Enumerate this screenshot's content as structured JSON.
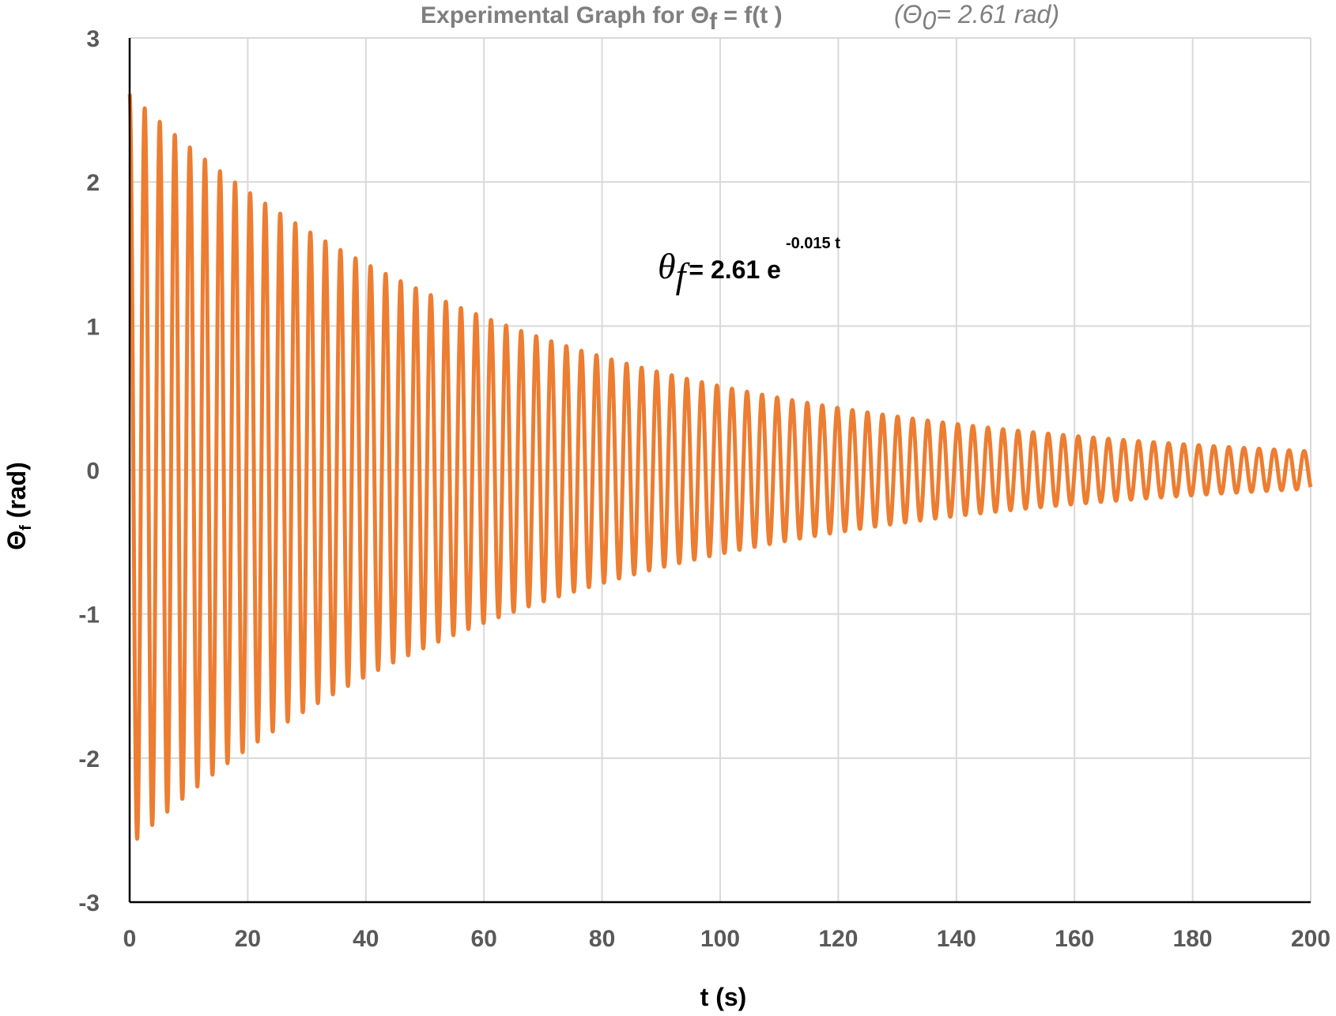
{
  "chart_data": {
    "type": "line",
    "title": {
      "prefix": "Experimental Graph for Θ",
      "subscript": "f",
      "suffix": " = f(t )",
      "note_open": "(Θ",
      "note_sub": "0",
      "note_rest": "= 2.61 rad)"
    },
    "xlabel": "t (s)",
    "ylabel": {
      "symbol": "Θ",
      "subscript": "f",
      "unit": " (rad)"
    },
    "xlim": [
      0,
      200
    ],
    "ylim": [
      -3,
      3
    ],
    "x_ticks": [
      0,
      20,
      40,
      60,
      80,
      100,
      120,
      140,
      160,
      180,
      200
    ],
    "y_ticks": [
      3,
      2,
      1,
      0,
      -1,
      -2,
      -3
    ],
    "grid": true,
    "annotation": {
      "symbol": "θ",
      "subscript": "f",
      "text": "= 2.61 e",
      "superscript": "-0.015 t"
    },
    "series": [
      {
        "color": "#ED7D31",
        "description_values": {
          "amplitude": 2.61,
          "decay_rate": 0.015,
          "period_s": 2.55,
          "t_start": 0,
          "t_end": 200
        },
        "peaks": [
          {
            "x": 0.0,
            "y": 2.65
          },
          {
            "x": 1.3,
            "y": -2.63
          },
          {
            "x": 3.5,
            "y": 2.45
          },
          {
            "x": 5.3,
            "y": -2.48
          },
          {
            "x": 6.6,
            "y": 2.32
          },
          {
            "x": 10.0,
            "y": 2.2
          },
          {
            "x": 12.5,
            "y": 2.1
          },
          {
            "x": 15.3,
            "y": 2.03
          },
          {
            "x": 17.8,
            "y": 1.95
          },
          {
            "x": 20.3,
            "y": 1.86
          },
          {
            "x": 40.0,
            "y": 1.38
          },
          {
            "x": 60.0,
            "y": 1.04
          },
          {
            "x": 80.0,
            "y": 0.78
          },
          {
            "x": 100.0,
            "y": 0.6
          },
          {
            "x": 120.0,
            "y": 0.45
          },
          {
            "x": 140.0,
            "y": 0.3
          },
          {
            "x": 160.0,
            "y": 0.17
          },
          {
            "x": 180.0,
            "y": 0.08
          },
          {
            "x": 200.0,
            "y": 0.01
          }
        ]
      }
    ]
  }
}
